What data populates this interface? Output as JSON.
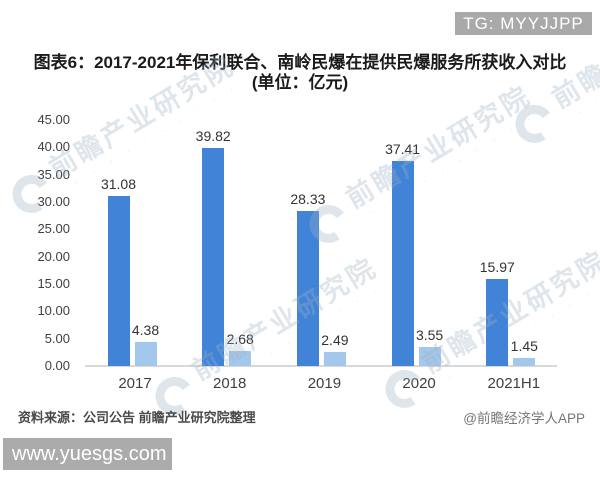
{
  "overlay": {
    "tg_badge": "TG: MYYJJPP",
    "site_badge": "www.yuesgs.com"
  },
  "title": {
    "line1": "图表6：2017-2021年保利联合、南岭民爆在提供民爆服务所获收入对比",
    "line2": "(单位：亿元)"
  },
  "chart_data": {
    "type": "bar",
    "title": "图表6：2017-2021年保利联合、南岭民爆在提供民爆服务所获收入对比(单位：亿元)",
    "unit": "亿元",
    "categories": [
      "2017",
      "2018",
      "2019",
      "2020",
      "2021H1"
    ],
    "series": [
      {
        "name": "保利联合",
        "color": "#4183d7",
        "values": [
          31.08,
          39.82,
          28.33,
          37.41,
          15.97
        ]
      },
      {
        "name": "南岭民爆",
        "color": "#a4c7ec",
        "values": [
          4.38,
          2.68,
          2.49,
          3.55,
          1.45
        ]
      }
    ],
    "ylim": [
      0,
      45
    ],
    "ytick_step": 5,
    "ytick_decimals": 2,
    "data_labels": true,
    "grid": false,
    "legend_position": "none"
  },
  "watermark": {
    "text": "前瞻产业研究院",
    "subtext": "· · · · · · · · · ·"
  },
  "footer": {
    "source": "资料来源：公司公告 前瞻产业研究院整理",
    "credit": "@前瞻经济学人APP"
  },
  "colors": {
    "bar_primary": "#4183d7",
    "bar_secondary": "#a4c7ec",
    "badge_bg": "#a9a9a9",
    "site_badge_bg": "#ababab",
    "axis_line": "#d9d9d9"
  }
}
